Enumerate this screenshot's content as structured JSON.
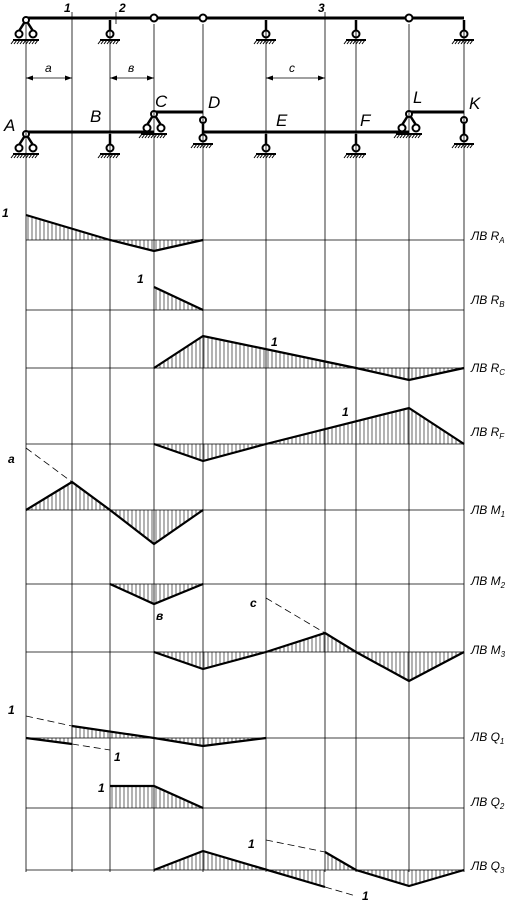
{
  "beam": {
    "supports": [
      "A",
      "B",
      "C",
      "D",
      "E",
      "F",
      "L",
      "K"
    ],
    "sections": [
      "1",
      "2",
      "3"
    ],
    "dimensions": [
      "а",
      "в",
      "с"
    ]
  },
  "lines": [
    {
      "id": "ra",
      "label": "ЛВ R",
      "sub": "A",
      "marks": [
        "1"
      ]
    },
    {
      "id": "rb",
      "label": "ЛВ R",
      "sub": "B",
      "marks": [
        "1"
      ]
    },
    {
      "id": "rc",
      "label": "ЛВ R",
      "sub": "C",
      "marks": [
        "1"
      ]
    },
    {
      "id": "rf",
      "label": "ЛВ R",
      "sub": "F",
      "marks": [
        "1"
      ]
    },
    {
      "id": "m1",
      "label": "ЛВ M",
      "sub": "1",
      "marks": [
        "а"
      ]
    },
    {
      "id": "m2",
      "label": "ЛВ M",
      "sub": "2",
      "marks": [
        "в"
      ]
    },
    {
      "id": "m3",
      "label": "ЛВ M",
      "sub": "3",
      "marks": [
        "с"
      ]
    },
    {
      "id": "q1",
      "label": "ЛВ Q",
      "sub": "1",
      "marks": [
        "1",
        "1"
      ]
    },
    {
      "id": "q2",
      "label": "ЛВ Q",
      "sub": "2",
      "marks": [
        "1"
      ]
    },
    {
      "id": "q3",
      "label": "ЛВ Q",
      "sub": "3",
      "marks": [
        "1",
        "1"
      ]
    }
  ]
}
